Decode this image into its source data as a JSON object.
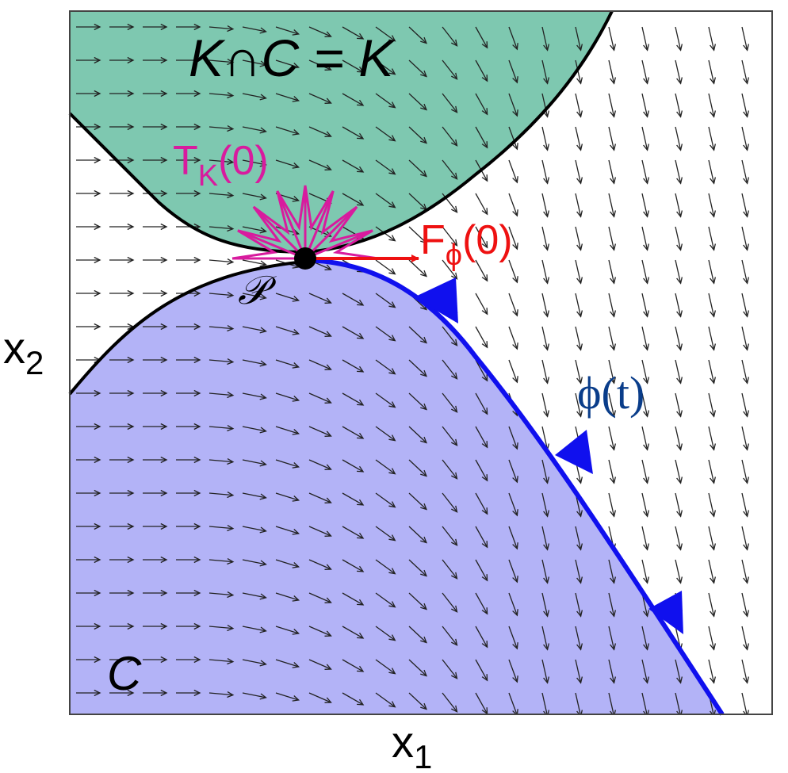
{
  "diagram": {
    "label_k_intersect_c": "K∩C = K",
    "label_tangent_cone": {
      "main": "T",
      "sub": "K",
      "arg": "(0)"
    },
    "label_vector_field": {
      "main": "F",
      "sub": "ϕ",
      "arg": "(0)"
    },
    "label_point": "𝒫",
    "label_trajectory": "ϕ(t)",
    "label_set_c": "C",
    "axis_x": {
      "main": "x",
      "sub": "1"
    },
    "axis_y": {
      "main": "x",
      "sub": "2"
    },
    "colors": {
      "region_k": "#7ec8b0",
      "region_c": "#b3b3f7",
      "boundary": "#000000",
      "trajectory": "#1010ee",
      "tangent_cone": "#d81b9e",
      "field_arrow_f": "#ee1111",
      "field_arrows": "#222222"
    }
  }
}
